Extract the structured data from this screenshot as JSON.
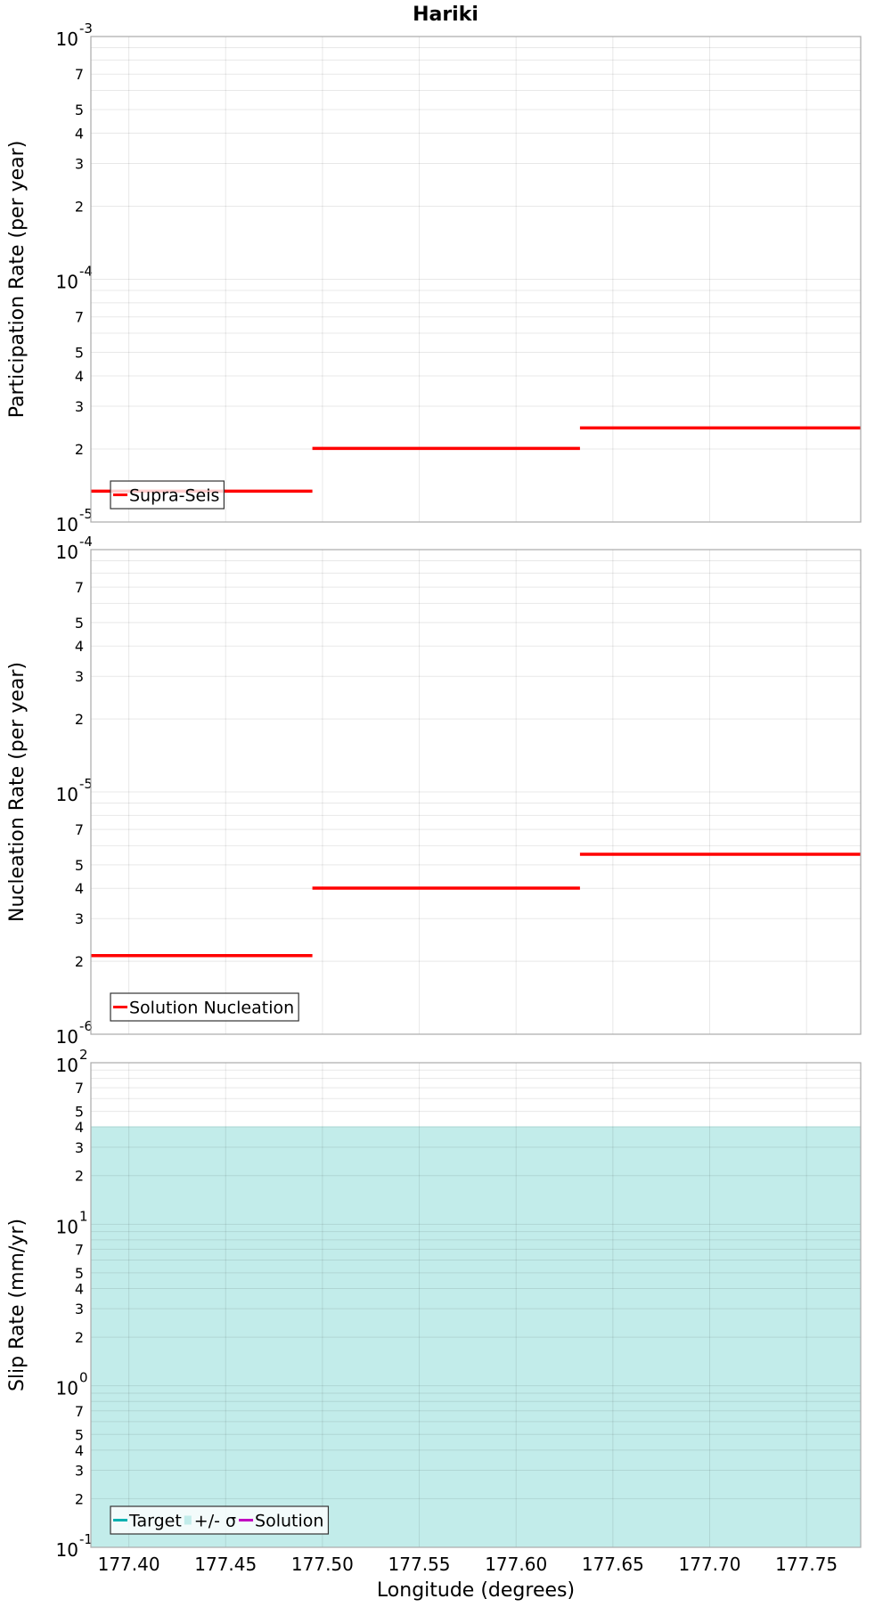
{
  "chart_data": [
    {
      "type": "line",
      "title": "Hariki",
      "ylabel": "Participation Rate (per year)",
      "xlabel": "",
      "yscale": "log",
      "ylim": [
        1e-05,
        0.001
      ],
      "xlim": [
        177.3804,
        177.778
      ],
      "legend": {
        "placement": "bottom-left",
        "entries": [
          {
            "label": "Supra-Seis",
            "color": "#ff0000"
          }
        ]
      },
      "series": [
        {
          "name": "Supra-Seis",
          "color": "#ff0000",
          "segments": [
            {
              "x": [
                177.3804,
                177.4948
              ],
              "y": 1.34e-05
            },
            {
              "x": [
                177.4948,
                177.633
              ],
              "y": 2.01e-05
            },
            {
              "x": [
                177.633,
                177.778
              ],
              "y": 2.44e-05
            }
          ]
        }
      ]
    },
    {
      "type": "line",
      "ylabel": "Nucleation Rate (per year)",
      "xlabel": "",
      "yscale": "log",
      "ylim": [
        1e-06,
        0.0001
      ],
      "xlim": [
        177.3804,
        177.778
      ],
      "legend": {
        "placement": "bottom-left",
        "entries": [
          {
            "label": "Solution Nucleation",
            "color": "#ff0000"
          }
        ]
      },
      "series": [
        {
          "name": "Solution Nucleation",
          "color": "#ff0000",
          "segments": [
            {
              "x": [
                177.3804,
                177.4948
              ],
              "y": 2.11e-06
            },
            {
              "x": [
                177.4948,
                177.633
              ],
              "y": 4.01e-06
            },
            {
              "x": [
                177.633,
                177.778
              ],
              "y": 5.53e-06
            }
          ]
        }
      ]
    },
    {
      "type": "area",
      "ylabel": "Slip Rate (mm/yr)",
      "xlabel": "Longitude (degrees)",
      "yscale": "log",
      "ylim": [
        0.1,
        100
      ],
      "xlim": [
        177.3804,
        177.778
      ],
      "xticks": [
        "177.40",
        "177.45",
        "177.50",
        "177.55",
        "177.60",
        "177.65",
        "177.70",
        "177.75"
      ],
      "legend": {
        "placement": "bottom-left",
        "entries": [
          {
            "label": "Target",
            "color": "#00b0b0"
          },
          {
            "label": "+/- σ",
            "color": "#c2ecea"
          },
          {
            "label": "Solution",
            "color": "#c000c0"
          }
        ]
      },
      "band": {
        "name": "+/- σ",
        "color": "#c2ecea",
        "x": [
          177.3804,
          177.778
        ],
        "upper": 40.4,
        "lower": 0.1
      }
    }
  ]
}
